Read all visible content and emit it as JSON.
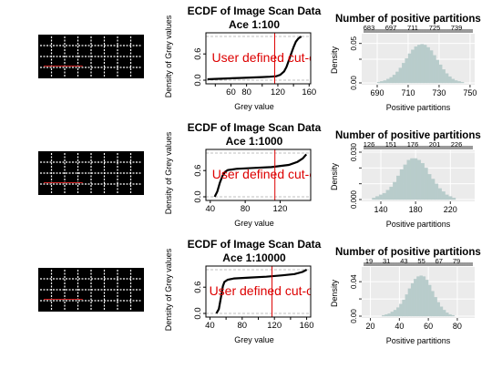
{
  "chart_data": [
    {
      "row": 1,
      "scan": {
        "type": "image",
        "grid_rows": 4,
        "grid_cols": 8
      },
      "ecdf": {
        "type": "line",
        "title": "ECDF of Image Scan Data",
        "subtitle": "Ace 1:100",
        "xlabel": "Grey value",
        "ylabel": "Density of Grey values",
        "xlim": [
          28,
          162
        ],
        "ylim": [
          0,
          1
        ],
        "xticks": [
          40,
          60,
          80,
          100,
          120,
          140,
          160
        ],
        "xtick_labels": [
          "",
          "60",
          "80",
          "",
          "120",
          "",
          "160"
        ],
        "yticks": [
          0,
          0.6
        ],
        "ytick_labels": [
          "0.0",
          "0.6"
        ],
        "cutoff": 116,
        "cutoff_label": "User defined cut-off",
        "points": [
          [
            30,
            0.02
          ],
          [
            40,
            0.03
          ],
          [
            55,
            0.04
          ],
          [
            70,
            0.05
          ],
          [
            85,
            0.06
          ],
          [
            100,
            0.07
          ],
          [
            110,
            0.08
          ],
          [
            118,
            0.09
          ],
          [
            123,
            0.12
          ],
          [
            128,
            0.2
          ],
          [
            131,
            0.3
          ],
          [
            134,
            0.45
          ],
          [
            137,
            0.6
          ],
          [
            140,
            0.75
          ],
          [
            143,
            0.88
          ],
          [
            146,
            0.95
          ],
          [
            150,
            1.0
          ]
        ]
      },
      "hist": {
        "type": "bar",
        "title": "Number of positive partitions",
        "xlabel": "Positive partitions",
        "ylabel": "Density",
        "xlim": [
          680,
          753
        ],
        "ylim": [
          0,
          0.06
        ],
        "xticks": [
          690,
          710,
          730,
          750
        ],
        "yticks": [
          0,
          0.03,
          0.05
        ],
        "ytick_labels": [
          "0.00",
          "",
          "0.05"
        ],
        "top_ticks": [
          683,
          697,
          711,
          725,
          739
        ],
        "bin_width": 2,
        "bins": [
          [
            690,
            0.001
          ],
          [
            692,
            0.002
          ],
          [
            694,
            0.003
          ],
          [
            696,
            0.005
          ],
          [
            698,
            0.007
          ],
          [
            700,
            0.01
          ],
          [
            702,
            0.014
          ],
          [
            704,
            0.019
          ],
          [
            706,
            0.025
          ],
          [
            708,
            0.031
          ],
          [
            710,
            0.037
          ],
          [
            712,
            0.042
          ],
          [
            714,
            0.046
          ],
          [
            716,
            0.048
          ],
          [
            718,
            0.049
          ],
          [
            720,
            0.048
          ],
          [
            722,
            0.045
          ],
          [
            724,
            0.041
          ],
          [
            726,
            0.035
          ],
          [
            728,
            0.029
          ],
          [
            730,
            0.023
          ],
          [
            732,
            0.017
          ],
          [
            734,
            0.012
          ],
          [
            736,
            0.008
          ],
          [
            738,
            0.005
          ],
          [
            740,
            0.003
          ],
          [
            742,
            0.002
          ],
          [
            744,
            0.001
          ]
        ]
      }
    },
    {
      "row": 2,
      "scan": {
        "type": "image",
        "grid_rows": 4,
        "grid_cols": 8
      },
      "ecdf": {
        "type": "line",
        "title": "ECDF of Image Scan Data",
        "subtitle": "Ace 1:1000",
        "xlabel": "Grey value",
        "ylabel": "Density of Grey values",
        "xlim": [
          35,
          155
        ],
        "ylim": [
          0,
          1
        ],
        "xticks": [
          40,
          80,
          120
        ],
        "xtick_labels": [
          "40",
          "80",
          "120"
        ],
        "yticks": [
          0,
          0.6
        ],
        "ytick_labels": [
          "0.0",
          "0.6"
        ],
        "cutoff": 114,
        "cutoff_label": "User defined cut-off",
        "points": [
          [
            45,
            0.0
          ],
          [
            48,
            0.12
          ],
          [
            51,
            0.32
          ],
          [
            54,
            0.48
          ],
          [
            57,
            0.57
          ],
          [
            60,
            0.61
          ],
          [
            70,
            0.64
          ],
          [
            90,
            0.66
          ],
          [
            110,
            0.68
          ],
          [
            130,
            0.73
          ],
          [
            140,
            0.8
          ],
          [
            146,
            0.88
          ],
          [
            150,
            0.97
          ]
        ]
      },
      "hist": {
        "type": "bar",
        "title": "Number of positive partitions",
        "xlabel": "Positive partitions",
        "ylabel": "Density",
        "xlim": [
          118,
          248
        ],
        "ylim": [
          0,
          0.03
        ],
        "xticks": [
          140,
          180,
          220
        ],
        "yticks": [
          0,
          0.01,
          0.02,
          0.03
        ],
        "ytick_labels": [
          "0.000",
          "",
          "",
          "0.030"
        ],
        "top_ticks": [
          126,
          151,
          176,
          201,
          226
        ],
        "bin_width": 4,
        "bins": [
          [
            130,
            0.001
          ],
          [
            134,
            0.002
          ],
          [
            138,
            0.003
          ],
          [
            142,
            0.004
          ],
          [
            146,
            0.006
          ],
          [
            150,
            0.008
          ],
          [
            154,
            0.011
          ],
          [
            158,
            0.015
          ],
          [
            162,
            0.019
          ],
          [
            166,
            0.022
          ],
          [
            170,
            0.025
          ],
          [
            174,
            0.026
          ],
          [
            178,
            0.026
          ],
          [
            182,
            0.025
          ],
          [
            186,
            0.023
          ],
          [
            190,
            0.02
          ],
          [
            194,
            0.016
          ],
          [
            198,
            0.013
          ],
          [
            202,
            0.01
          ],
          [
            206,
            0.007
          ],
          [
            210,
            0.005
          ],
          [
            214,
            0.003
          ],
          [
            218,
            0.002
          ],
          [
            222,
            0.001
          ]
        ]
      }
    },
    {
      "row": 3,
      "scan": {
        "type": "image",
        "grid_rows": 4,
        "grid_cols": 8
      },
      "ecdf": {
        "type": "line",
        "title": "ECDF of Image Scan Data",
        "subtitle": "Ace 1:10000",
        "xlabel": "Grey value",
        "ylabel": "Density of Grey values",
        "xlim": [
          35,
          165
        ],
        "ylim": [
          0,
          1
        ],
        "xticks": [
          40,
          60,
          80,
          100,
          120,
          140,
          160
        ],
        "xtick_labels": [
          "40",
          "",
          "80",
          "",
          "120",
          "",
          "160"
        ],
        "yticks": [
          0,
          0.6
        ],
        "ytick_labels": [
          "0.0",
          "0.6"
        ],
        "cutoff": 117,
        "cutoff_label": "User defined cut-off",
        "points": [
          [
            48,
            0.0
          ],
          [
            51,
            0.1
          ],
          [
            54,
            0.4
          ],
          [
            56,
            0.62
          ],
          [
            58,
            0.72
          ],
          [
            62,
            0.77
          ],
          [
            70,
            0.8
          ],
          [
            90,
            0.82
          ],
          [
            110,
            0.84
          ],
          [
            130,
            0.87
          ],
          [
            145,
            0.9
          ],
          [
            155,
            0.95
          ],
          [
            160,
            1.0
          ]
        ]
      },
      "hist": {
        "type": "bar",
        "title": "Number of positive partitions",
        "xlabel": "Positive partitions",
        "ylabel": "Density",
        "xlim": [
          14,
          92
        ],
        "ylim": [
          0,
          0.055
        ],
        "xticks": [
          20,
          40,
          60,
          80
        ],
        "yticks": [
          0,
          0.02,
          0.04
        ],
        "ytick_labels": [
          "0.00",
          "",
          "0.04"
        ],
        "top_ticks": [
          19,
          31,
          43,
          55,
          67,
          79
        ],
        "bin_width": 2,
        "bins": [
          [
            28,
            0.001
          ],
          [
            30,
            0.002
          ],
          [
            32,
            0.003
          ],
          [
            34,
            0.005
          ],
          [
            36,
            0.007
          ],
          [
            38,
            0.01
          ],
          [
            40,
            0.014
          ],
          [
            42,
            0.019
          ],
          [
            44,
            0.025
          ],
          [
            46,
            0.032
          ],
          [
            48,
            0.038
          ],
          [
            50,
            0.043
          ],
          [
            52,
            0.046
          ],
          [
            54,
            0.047
          ],
          [
            56,
            0.046
          ],
          [
            58,
            0.042
          ],
          [
            60,
            0.036
          ],
          [
            62,
            0.029
          ],
          [
            64,
            0.022
          ],
          [
            66,
            0.016
          ],
          [
            68,
            0.011
          ],
          [
            70,
            0.007
          ],
          [
            72,
            0.004
          ],
          [
            74,
            0.002
          ],
          [
            76,
            0.001
          ]
        ]
      }
    }
  ]
}
